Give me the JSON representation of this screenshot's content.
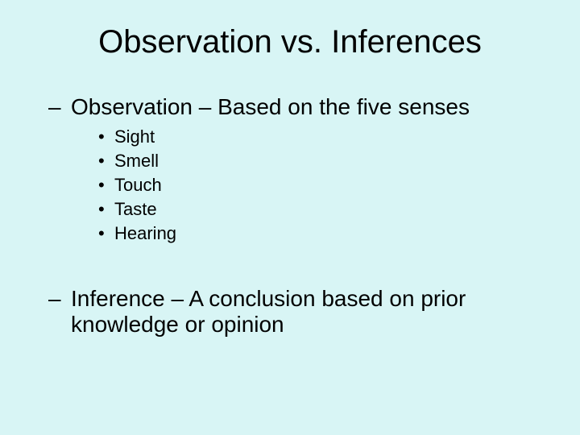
{
  "background_color": "#d8f5f5",
  "text_color": "#000000",
  "font_family": "Arial, Helvetica, sans-serif",
  "title": {
    "text": "Observation vs. Inferences",
    "fontsize": 40,
    "fontweight": 400
  },
  "level1_fontsize": 28,
  "sub_fontsize": 22,
  "sub_lineheight": 30,
  "dash_glyph": "–",
  "bullet_glyph": "•",
  "items": [
    {
      "text_line1": "Observation – Based on the five senses",
      "text_line2": "",
      "subitems": [
        "Sight",
        "Smell",
        "Touch",
        "Taste",
        "Hearing"
      ]
    },
    {
      "text_line1": "Inference – A conclusion based on prior",
      "text_line2": "knowledge or opinion",
      "subitems": []
    }
  ]
}
